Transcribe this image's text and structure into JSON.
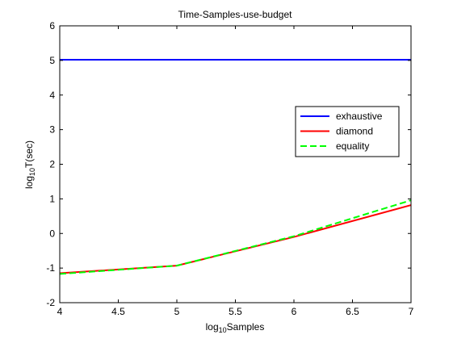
{
  "chart_data": {
    "type": "line",
    "title": "Time-Samples-use-budget",
    "xlabel": {
      "base": "log",
      "sub": "10",
      "rest": "Samples"
    },
    "ylabel": {
      "base": "log",
      "sub": "10",
      "rest": "T(sec)"
    },
    "xlim": [
      4,
      7
    ],
    "ylim": [
      -2,
      6
    ],
    "xticks": [
      4,
      4.5,
      5,
      5.5,
      6,
      6.5,
      7
    ],
    "xtick_labels": [
      "4",
      "4.5",
      "5",
      "5.5",
      "6",
      "6.5",
      "7"
    ],
    "yticks": [
      -2,
      -1,
      0,
      1,
      2,
      3,
      4,
      5,
      6
    ],
    "ytick_labels": [
      "-2",
      "-1",
      "0",
      "1",
      "2",
      "3",
      "4",
      "5",
      "6"
    ],
    "grid": false,
    "legend_position": "right-middle",
    "series": [
      {
        "name": "exhaustive",
        "color": "#0000ff",
        "dash": "solid",
        "x": [
          4,
          5,
          6,
          7
        ],
        "y": [
          5.02,
          5.02,
          5.02,
          5.02
        ]
      },
      {
        "name": "diamond",
        "color": "#ff0000",
        "dash": "solid",
        "x": [
          4,
          5,
          6,
          7
        ],
        "y": [
          -1.15,
          -0.93,
          -0.1,
          0.82
        ]
      },
      {
        "name": "equality",
        "color": "#00ff00",
        "dash": "dashed",
        "x": [
          4,
          5,
          6,
          7
        ],
        "y": [
          -1.17,
          -0.93,
          -0.08,
          0.96
        ]
      }
    ]
  }
}
